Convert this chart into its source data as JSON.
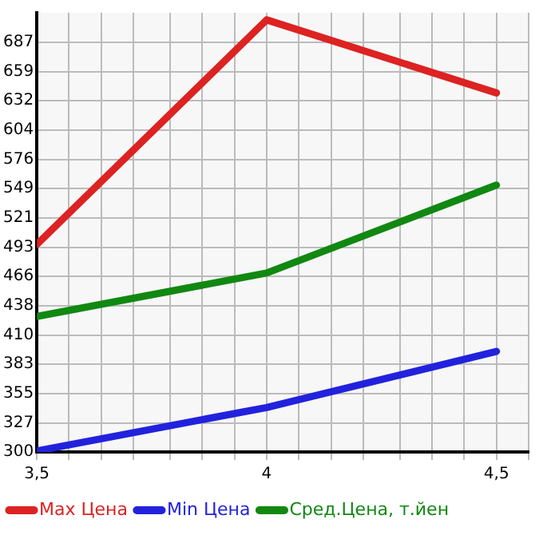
{
  "chart_data": {
    "type": "line",
    "x": [
      3.5,
      4,
      4.5
    ],
    "series": [
      {
        "name": "Max Цена",
        "color": "#dd2222",
        "values": [
          496,
          708,
          639
        ]
      },
      {
        "name": "Min Цена",
        "color": "#2222dd",
        "values": [
          301,
          342,
          395
        ]
      },
      {
        "name": "Сред.Цена, т.йен",
        "color": "#118811",
        "values": [
          428,
          469,
          552
        ]
      }
    ],
    "xlim": [
      3.5,
      4.57
    ],
    "xticks": [
      {
        "value": 3.5,
        "label": "3,5"
      },
      {
        "value": 3.57,
        "label": null
      },
      {
        "value": 3.64,
        "label": null
      },
      {
        "value": 3.71,
        "label": null
      },
      {
        "value": 3.79,
        "label": null
      },
      {
        "value": 3.86,
        "label": null
      },
      {
        "value": 3.93,
        "label": null
      },
      {
        "value": 4,
        "label": "4"
      },
      {
        "value": 4.07,
        "label": null
      },
      {
        "value": 4.14,
        "label": null
      },
      {
        "value": 4.21,
        "label": null
      },
      {
        "value": 4.29,
        "label": null
      },
      {
        "value": 4.36,
        "label": null
      },
      {
        "value": 4.43,
        "label": null
      },
      {
        "value": 4.5,
        "label": "4,5"
      },
      {
        "value": 4.57,
        "label": null
      }
    ],
    "ylim": [
      300,
      714.7
    ],
    "yticks": [
      300,
      327,
      355,
      383,
      410,
      438,
      466,
      493,
      521,
      549,
      576,
      604,
      632,
      659,
      687
    ],
    "grid": true,
    "legend": "bottom",
    "marker": "none",
    "line_style": "solid"
  }
}
